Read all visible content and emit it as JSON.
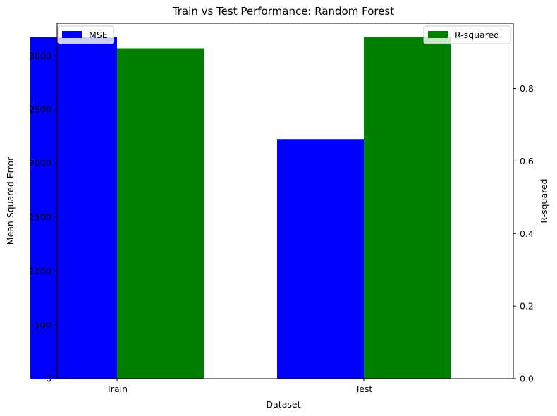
{
  "chart_data": {
    "type": "bar",
    "title": "Train vs Test Performance: Random Forest",
    "xlabel": "Dataset",
    "categories": [
      "Train",
      "Test"
    ],
    "left_axis": {
      "label": "Mean Squared Error",
      "color": "#0000ff",
      "ylim": [
        0,
        3300
      ],
      "ticks": [
        0,
        500,
        1000,
        1500,
        2000,
        2500,
        3000
      ]
    },
    "right_axis": {
      "label": "R-squared",
      "color": "#008000",
      "ylim": [
        0,
        0.98
      ],
      "ticks": [
        "0.0",
        "0.2",
        "0.4",
        "0.6",
        "0.8"
      ]
    },
    "series": [
      {
        "name": "MSE",
        "axis": "left",
        "color": "#0000ff",
        "values": [
          3170,
          2225
        ]
      },
      {
        "name": "R-squared",
        "axis": "right",
        "color": "#008000",
        "values": [
          0.911,
          0.943
        ]
      }
    ],
    "legends": [
      {
        "series": "MSE",
        "position": "upper-left"
      },
      {
        "series": "R-squared",
        "position": "upper-right"
      }
    ],
    "grid": false
  }
}
